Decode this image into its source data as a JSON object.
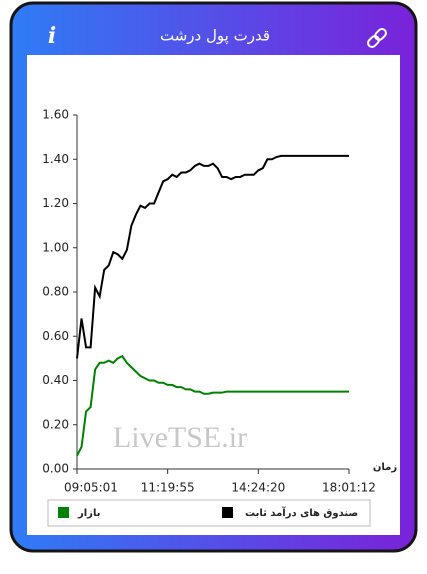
{
  "header": {
    "title": "قدرت پول درشت",
    "info_icon": "i"
  },
  "chart_data": {
    "type": "line",
    "x_label": "زمان",
    "watermark": "LiveTSE.ir",
    "x": [
      0,
      1,
      2,
      3,
      4,
      5,
      6,
      7,
      8,
      9,
      10,
      11,
      12,
      13,
      14,
      15,
      16,
      17,
      18,
      19,
      20,
      21,
      22,
      23,
      24,
      25,
      26,
      27,
      28,
      29,
      30,
      31,
      32,
      33,
      34,
      35,
      36,
      37,
      38,
      39,
      40,
      41,
      42,
      43,
      44,
      45,
      46,
      47,
      48,
      49,
      50,
      51,
      52,
      53,
      54,
      55,
      56,
      57,
      58,
      59,
      60
    ],
    "xlim": [
      0,
      60
    ],
    "xticks": [
      {
        "value": 0,
        "label": "09:05:01"
      },
      {
        "value": 20,
        "label": "11:19:55"
      },
      {
        "value": 40,
        "label": "14:24:20"
      },
      {
        "value": 60,
        "label": "18:01:12"
      }
    ],
    "ylim": [
      0,
      1.6
    ],
    "yticks": [
      {
        "value": 0,
        "label": "0.00"
      },
      {
        "value": 0.2,
        "label": "0.20"
      },
      {
        "value": 0.4,
        "label": "0.40"
      },
      {
        "value": 0.6,
        "label": "0.60"
      },
      {
        "value": 0.8,
        "label": "0.80"
      },
      {
        "value": 1,
        "label": "1.00"
      },
      {
        "value": 1.2,
        "label": "1.20"
      },
      {
        "value": 1.4,
        "label": "1.40"
      },
      {
        "value": 1.6,
        "label": "1.60"
      }
    ],
    "grid": false,
    "series": [
      {
        "name": "صندوق های درآمد ثابت",
        "color": "#000000",
        "values": [
          0.5,
          0.68,
          0.55,
          0.55,
          0.82,
          0.78,
          0.9,
          0.92,
          0.98,
          0.97,
          0.95,
          0.99,
          1.1,
          1.15,
          1.19,
          1.18,
          1.2,
          1.2,
          1.25,
          1.3,
          1.31,
          1.33,
          1.32,
          1.34,
          1.34,
          1.35,
          1.37,
          1.38,
          1.37,
          1.37,
          1.38,
          1.36,
          1.32,
          1.32,
          1.31,
          1.32,
          1.32,
          1.33,
          1.33,
          1.33,
          1.35,
          1.36,
          1.4,
          1.4,
          1.41,
          1.415,
          1.415,
          1.415,
          1.415,
          1.415,
          1.415,
          1.415,
          1.415,
          1.415,
          1.415,
          1.415,
          1.415,
          1.415,
          1.415,
          1.415,
          1.415
        ]
      },
      {
        "name": "بازار",
        "color": "#008000",
        "values": [
          0.06,
          0.1,
          0.26,
          0.28,
          0.45,
          0.48,
          0.48,
          0.49,
          0.48,
          0.5,
          0.51,
          0.48,
          0.46,
          0.44,
          0.42,
          0.41,
          0.4,
          0.4,
          0.39,
          0.39,
          0.38,
          0.38,
          0.37,
          0.37,
          0.36,
          0.36,
          0.35,
          0.35,
          0.34,
          0.34,
          0.345,
          0.345,
          0.345,
          0.35,
          0.35,
          0.35,
          0.35,
          0.35,
          0.35,
          0.35,
          0.35,
          0.35,
          0.35,
          0.35,
          0.35,
          0.35,
          0.35,
          0.35,
          0.35,
          0.35,
          0.35,
          0.35,
          0.35,
          0.35,
          0.35,
          0.35,
          0.35,
          0.35,
          0.35,
          0.35,
          0.35
        ]
      }
    ]
  }
}
